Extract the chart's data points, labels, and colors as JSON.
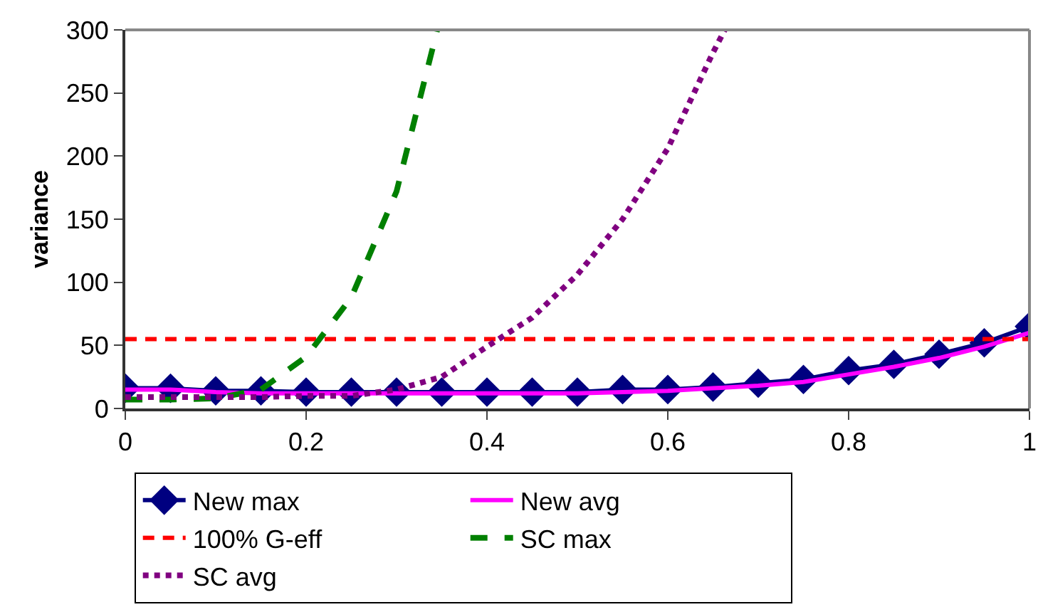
{
  "chart_data": {
    "type": "line",
    "ylabel": "variance",
    "xlim": [
      0,
      1
    ],
    "xticks": [
      0,
      0.2,
      0.4,
      0.6,
      0.8,
      1
    ],
    "ylim": [
      0,
      300
    ],
    "yticks": [
      0,
      50,
      100,
      150,
      200,
      250,
      300
    ],
    "grid": false,
    "legend": "bottom",
    "series": [
      {
        "name": "New max",
        "color": "#000080",
        "marker": "diamond",
        "line_style": "solid",
        "x": [
          0,
          0.05,
          0.1,
          0.15,
          0.2,
          0.25,
          0.3,
          0.35,
          0.4,
          0.45,
          0.5,
          0.55,
          0.6,
          0.65,
          0.7,
          0.75,
          0.8,
          0.85,
          0.9,
          0.95,
          1
        ],
        "values": [
          16,
          16,
          14,
          14,
          13,
          13,
          13,
          13,
          13,
          13,
          13,
          15,
          15,
          17,
          20,
          23,
          30,
          35,
          43,
          52,
          65
        ]
      },
      {
        "name": "New avg",
        "color": "#ff00ff",
        "marker": "none",
        "line_style": "solid",
        "x": [
          0,
          0.05,
          0.1,
          0.15,
          0.2,
          0.25,
          0.3,
          0.35,
          0.4,
          0.45,
          0.5,
          0.55,
          0.6,
          0.65,
          0.7,
          0.75,
          0.8,
          0.85,
          0.9,
          0.95,
          1
        ],
        "values": [
          15,
          15,
          13,
          12,
          12,
          12,
          12,
          12,
          12,
          12,
          12,
          13,
          14,
          16,
          18,
          21,
          27,
          33,
          40,
          49,
          60
        ]
      },
      {
        "name": "SC max",
        "color": "#008000",
        "marker": "none",
        "line_style": "dashed",
        "x": [
          0,
          0.05,
          0.1,
          0.15,
          0.2,
          0.25,
          0.3,
          0.345
        ],
        "values": [
          7,
          7,
          8,
          15,
          41,
          88,
          172,
          300
        ]
      },
      {
        "name": "SC avg",
        "color": "#800080",
        "marker": "none",
        "line_style": "dotted",
        "x": [
          0,
          0.05,
          0.1,
          0.15,
          0.2,
          0.25,
          0.3,
          0.35,
          0.4,
          0.45,
          0.5,
          0.55,
          0.6,
          0.65,
          0.663
        ],
        "values": [
          9,
          9,
          9,
          9,
          10,
          10,
          15,
          25,
          49,
          72,
          106,
          150,
          206,
          282,
          300
        ]
      }
    ],
    "ref_lines": [
      {
        "axis": "y",
        "value": 55,
        "label": "100% G-eff",
        "color": "#ff0000",
        "line_style": "dashed"
      }
    ]
  }
}
